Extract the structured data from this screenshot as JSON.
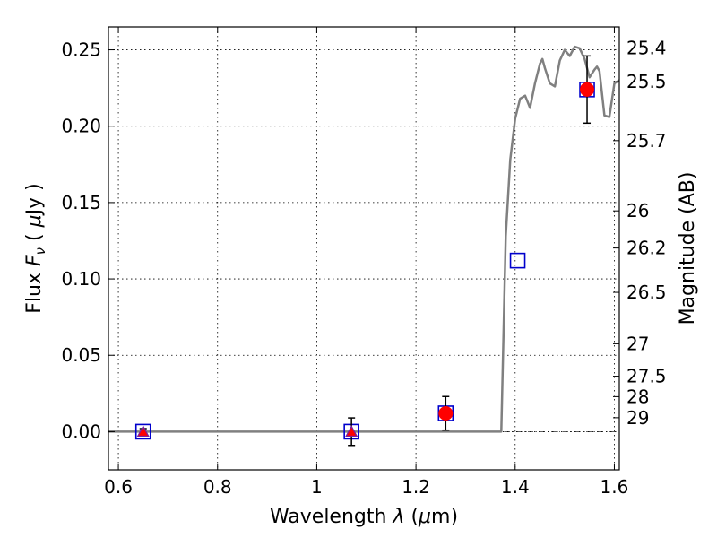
{
  "chart_data": {
    "type": "scatter",
    "xlabel": {
      "prefix": "Wavelength  ",
      "symbol": "λ",
      "suffix": " (",
      "unit_mu": "μ",
      "unit": "m)"
    },
    "ylabel": {
      "prefix": "Flux  ",
      "symbol": "F",
      "sub": "ν",
      "mid": "  ( ",
      "unit_mu": "μ",
      "unit": "Jy )"
    },
    "y2label": "Magnitude (AB)",
    "xlim": [
      0.58,
      1.61
    ],
    "ylim": [
      -0.025,
      0.265
    ],
    "grid": true,
    "x_ticks": [
      {
        "value": 0.6,
        "label": "0.6"
      },
      {
        "value": 0.8,
        "label": "0.8"
      },
      {
        "value": 1.0,
        "label": "1"
      },
      {
        "value": 1.2,
        "label": "1.2"
      },
      {
        "value": 1.4,
        "label": "1.4"
      },
      {
        "value": 1.6,
        "label": "1.6"
      }
    ],
    "y_ticks": [
      {
        "value": 0.0,
        "label": "0.00"
      },
      {
        "value": 0.05,
        "label": "0.05"
      },
      {
        "value": 0.1,
        "label": "0.10"
      },
      {
        "value": 0.15,
        "label": "0.15"
      },
      {
        "value": 0.2,
        "label": "0.20"
      },
      {
        "value": 0.25,
        "label": "0.25"
      }
    ],
    "y2_ticks": [
      {
        "mag": 25.4,
        "label": "25.4"
      },
      {
        "mag": 25.5,
        "label": "25.5"
      },
      {
        "mag": 25.7,
        "label": "25.7"
      },
      {
        "mag": 26.0,
        "label": "26"
      },
      {
        "mag": 26.2,
        "label": "26.2"
      },
      {
        "mag": 26.5,
        "label": "26.5"
      },
      {
        "mag": 27.0,
        "label": "27"
      },
      {
        "mag": 27.5,
        "label": "27.5"
      },
      {
        "mag": 28.0,
        "label": "28"
      },
      {
        "mag": 29.0,
        "label": "29"
      }
    ],
    "model_curve": {
      "color": "#808080",
      "x": [
        0.58,
        1.372,
        1.381,
        1.39,
        1.4,
        1.41,
        1.42,
        1.43,
        1.44,
        1.45,
        1.455,
        1.46,
        1.47,
        1.475,
        1.48,
        1.49,
        1.5,
        1.505,
        1.51,
        1.52,
        1.53,
        1.54,
        1.55,
        1.56,
        1.565,
        1.57,
        1.58,
        1.59,
        1.6,
        1.61
      ],
      "y": [
        0.0,
        0.0,
        0.128,
        0.178,
        0.205,
        0.218,
        0.22,
        0.212,
        0.228,
        0.241,
        0.244,
        0.238,
        0.228,
        0.227,
        0.226,
        0.243,
        0.25,
        0.248,
        0.246,
        0.252,
        0.251,
        0.244,
        0.232,
        0.237,
        0.239,
        0.236,
        0.207,
        0.206,
        0.228,
        0.23
      ]
    },
    "models": [
      {
        "x": 0.65,
        "y": 0.0
      },
      {
        "x": 1.07,
        "y": 0.0
      },
      {
        "x": 1.26,
        "y": 0.012
      },
      {
        "x": 1.405,
        "y": 0.112
      },
      {
        "x": 1.545,
        "y": 0.224
      }
    ],
    "detections": [
      {
        "x": 1.26,
        "y": 0.012,
        "err": 0.011
      },
      {
        "x": 1.545,
        "y": 0.224,
        "err": 0.022
      }
    ],
    "upper_limits": [
      {
        "x": 0.65,
        "y": 0.0,
        "err": 0.002
      },
      {
        "x": 1.07,
        "y": 0.0,
        "err": 0.009
      }
    ],
    "colors": {
      "model_box": "#0000cc",
      "point": "#ff0000",
      "limit_edge": "#7a1fa0",
      "curve": "#808080"
    }
  }
}
